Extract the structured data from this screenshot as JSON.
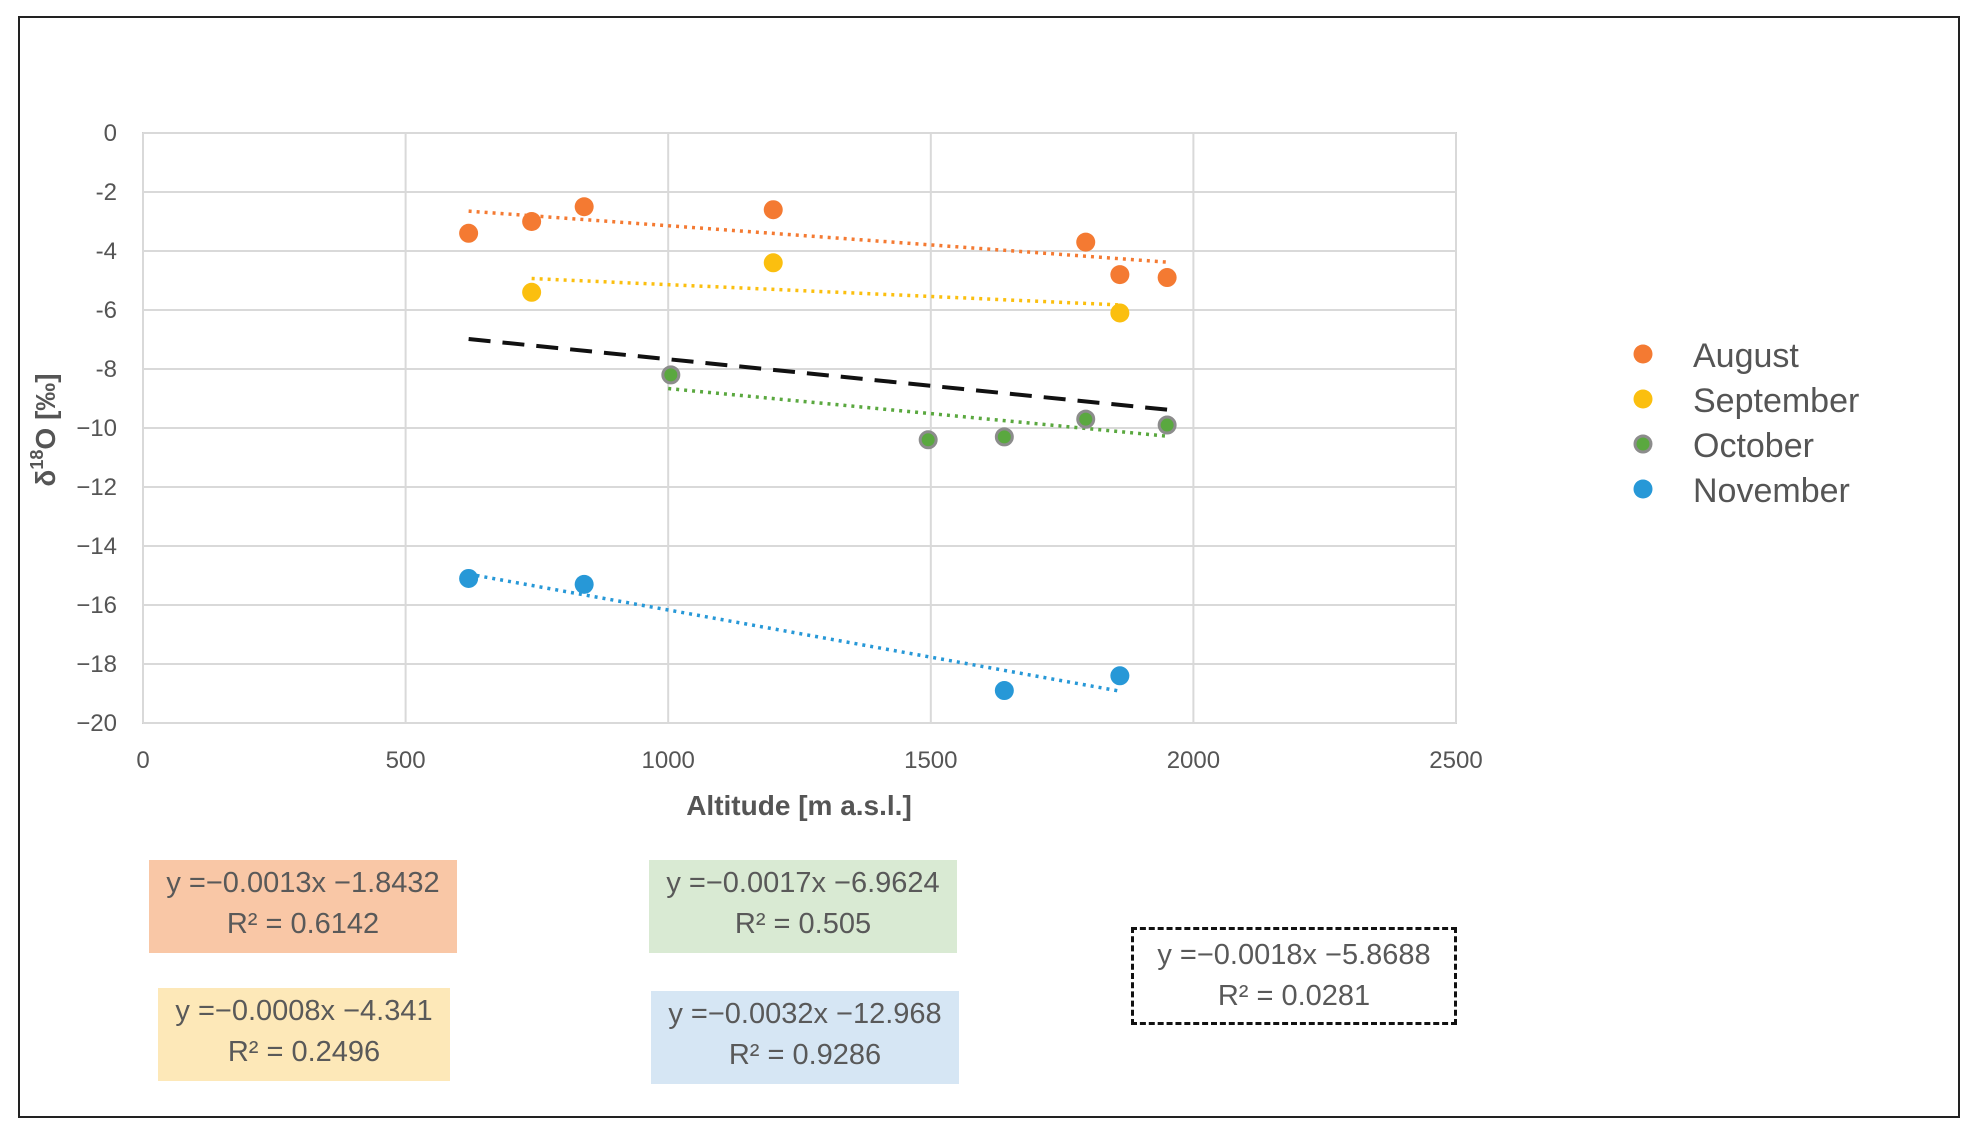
{
  "chart_data": {
    "type": "scatter",
    "title": "",
    "xlabel": "Altitude [m a.s.l.]",
    "ylabel": "δ18O [‰]",
    "xlim": [
      0,
      2500
    ],
    "ylim": [
      -20,
      0
    ],
    "xticks": [
      0,
      500,
      1000,
      1500,
      2000,
      2500
    ],
    "yticks": [
      0,
      -2,
      -4,
      -6,
      -8,
      -10,
      -12,
      -14,
      -16,
      -18,
      -20
    ],
    "ytick_labels": [
      "0",
      "-2",
      "-4",
      "-6",
      "-8",
      "−10",
      "−12",
      "−14",
      "−16",
      "−18",
      "−20"
    ],
    "grid": true,
    "legend_position": "right",
    "series": [
      {
        "name": "August",
        "color": "#f47a32",
        "x": [
          620,
          740,
          840,
          1200,
          1795,
          1860,
          1950
        ],
        "y": [
          -3.4,
          -3.0,
          -2.5,
          -2.6,
          -3.7,
          -4.8,
          -4.9
        ],
        "trend": {
          "slope": -0.0013,
          "intercept": -1.8432,
          "x_range": [
            620,
            1950
          ]
        },
        "equation": "y =−0.0013x −1.8432",
        "r2": "R² = 0.6142"
      },
      {
        "name": "September",
        "color": "#fbbf0f",
        "x": [
          740,
          1200,
          1860
        ],
        "y": [
          -5.4,
          -4.4,
          -6.1
        ],
        "trend": {
          "slope": -0.0008,
          "intercept": -4.341,
          "x_range": [
            740,
            1860
          ]
        },
        "equation": "y =−0.0008x −4.341",
        "r2": "R² = 0.2496"
      },
      {
        "name": "October",
        "color": "#5aa83f",
        "x": [
          1005,
          1495,
          1640,
          1795,
          1950
        ],
        "y": [
          -8.2,
          -10.4,
          -10.3,
          -9.7,
          -9.9
        ],
        "trend": {
          "slope": -0.0017,
          "intercept": -6.9624,
          "x_range": [
            1000,
            1950
          ]
        },
        "equation": "y =−0.0017x −6.9624",
        "r2": "R² = 0.505"
      },
      {
        "name": "November",
        "color": "#2798d7",
        "x": [
          620,
          840,
          1640,
          1860
        ],
        "y": [
          -15.1,
          -15.3,
          -18.9,
          -18.4
        ],
        "trend": {
          "slope": -0.0032,
          "intercept": -12.968,
          "x_range": [
            620,
            1860
          ]
        },
        "equation": "y =−0.0032x −12.968",
        "r2": "R² = 0.9286"
      }
    ],
    "overall_trend": {
      "slope": -0.0018,
      "intercept": -5.8688,
      "x_range": [
        620,
        1950
      ],
      "color": "#111111",
      "equation": "y =−0.0018x −5.8688",
      "r2": "R² = 0.0281"
    }
  }
}
